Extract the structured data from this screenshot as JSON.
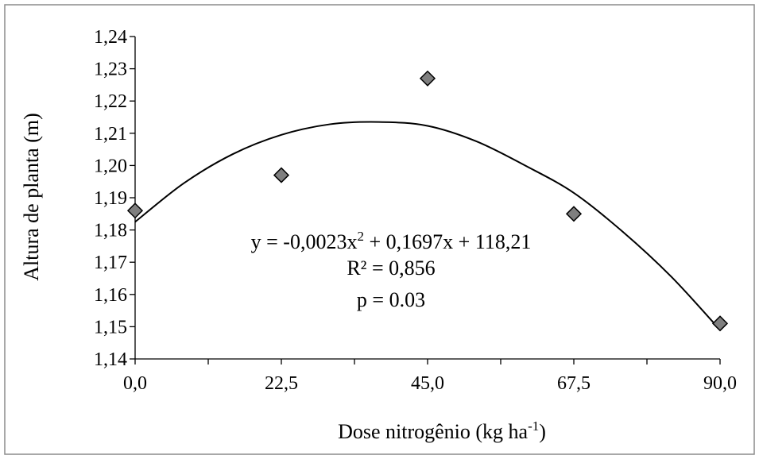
{
  "chart_data": {
    "type": "scatter",
    "title": "",
    "xlabel": "Dose nitrogênio (kg ha",
    "xlabel_sup": "-1",
    "xlabel_end": ")",
    "ylabel": "Altura de planta (m)",
    "x_ticks": [
      "0,0",
      "22,5",
      "45,0",
      "67,5",
      "90,0"
    ],
    "x_tick_values": [
      0,
      22.5,
      45,
      67.5,
      90
    ],
    "y_ticks": [
      "1,14",
      "1,15",
      "1,16",
      "1,17",
      "1,18",
      "1,19",
      "1,20",
      "1,21",
      "1,22",
      "1,23",
      "1,24"
    ],
    "xlim": [
      0,
      90
    ],
    "ylim": [
      1.14,
      1.24
    ],
    "grid": false,
    "legend": "none",
    "series": [
      {
        "points": [
          {
            "x": 0,
            "y": 1.186
          },
          {
            "x": 22.5,
            "y": 1.197
          },
          {
            "x": 45,
            "y": 1.227
          },
          {
            "x": 67.5,
            "y": 1.185
          },
          {
            "x": 90,
            "y": 1.151
          }
        ],
        "marker": "diamond",
        "color": "#7f7f7f"
      }
    ],
    "trendline": {
      "type": "polynomial-2",
      "points": [
        {
          "x": 0,
          "y": 1.1825
        },
        {
          "x": 7.5,
          "y": 1.1945
        },
        {
          "x": 15,
          "y": 1.2035
        },
        {
          "x": 22.5,
          "y": 1.2095
        },
        {
          "x": 30,
          "y": 1.2128
        },
        {
          "x": 37.5,
          "y": 1.2135
        },
        {
          "x": 45,
          "y": 1.2123
        },
        {
          "x": 52.5,
          "y": 1.2075
        },
        {
          "x": 60,
          "y": 1.2
        },
        {
          "x": 67.5,
          "y": 1.1915
        },
        {
          "x": 75,
          "y": 1.1795
        },
        {
          "x": 82.5,
          "y": 1.1655
        },
        {
          "x": 90,
          "y": 1.149
        }
      ]
    },
    "annotations": {
      "equation_a": "y = -0,0023x",
      "equation_sup": "2",
      "equation_b": " + 0,1697x + 118,21",
      "r_squared": "R² = 0,856",
      "p_value": "p = 0.03"
    }
  }
}
